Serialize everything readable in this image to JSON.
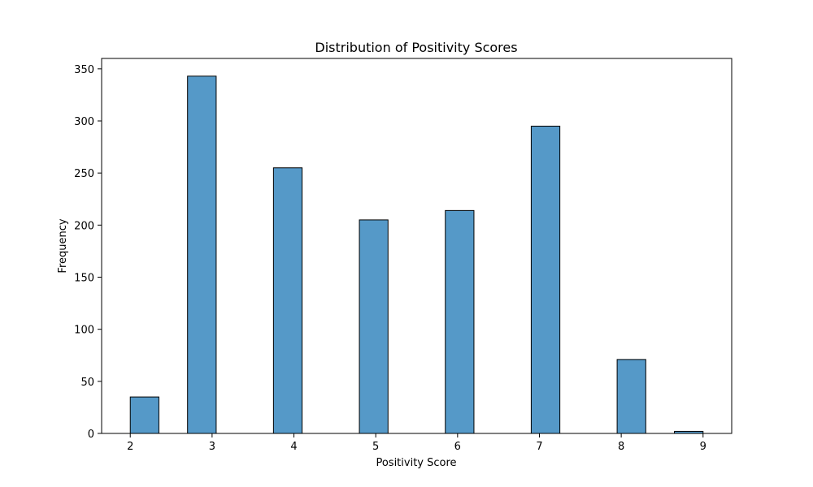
{
  "chart_data": {
    "type": "bar",
    "title": "Distribution of Positivity Scores",
    "xlabel": "Positivity Score",
    "ylabel": "Frequency",
    "bins": [
      {
        "x0": 2.0,
        "x1": 2.35,
        "value": 35
      },
      {
        "x0": 2.7,
        "x1": 3.05,
        "value": 343
      },
      {
        "x0": 3.75,
        "x1": 4.1,
        "value": 255
      },
      {
        "x0": 4.8,
        "x1": 5.15,
        "value": 205
      },
      {
        "x0": 5.85,
        "x1": 6.2,
        "value": 214
      },
      {
        "x0": 6.9,
        "x1": 7.25,
        "value": 295
      },
      {
        "x0": 7.95,
        "x1": 8.3,
        "value": 71
      },
      {
        "x0": 8.65,
        "x1": 9.0,
        "value": 2
      }
    ],
    "xlim": [
      1.65,
      9.35
    ],
    "ylim": [
      0,
      360
    ],
    "xticks": [
      2,
      3,
      4,
      5,
      6,
      7,
      8,
      9
    ],
    "yticks": [
      0,
      50,
      100,
      150,
      200,
      250,
      300,
      350
    ],
    "bar_color": "#5599c8",
    "edge_color": "#000000",
    "grid": false,
    "legend": "none"
  }
}
